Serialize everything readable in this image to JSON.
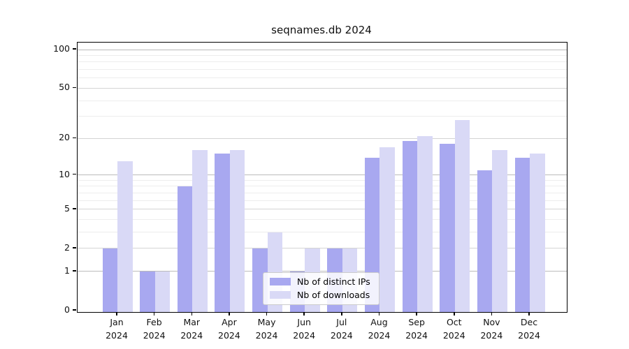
{
  "chart_data": {
    "type": "bar",
    "title": "seqnames.db 2024",
    "categories": [
      "Jan",
      "Feb",
      "Mar",
      "Apr",
      "May",
      "Jun",
      "Jul",
      "Aug",
      "Sep",
      "Oct",
      "Nov",
      "Dec"
    ],
    "year_label": "2024",
    "series": [
      {
        "name": "Nb of distinct IPs",
        "color": "#a8a8f0",
        "values": [
          2,
          1,
          8,
          15,
          2,
          1,
          2,
          14,
          19,
          18,
          11,
          14
        ]
      },
      {
        "name": "Nb of downloads",
        "color": "#d9d9f6",
        "values": [
          13,
          1,
          16,
          16,
          3,
          2,
          2,
          17,
          21,
          28,
          16,
          15
        ]
      }
    ],
    "y_axis": {
      "scale": "log1p",
      "min": 0,
      "max": 100,
      "tick_labels": [
        "0",
        "1",
        "2",
        "5",
        "10",
        "20",
        "50",
        "100"
      ],
      "ticks": [
        0,
        1,
        2,
        5,
        10,
        20,
        50,
        100
      ],
      "minor_gridlines": [
        3,
        4,
        6,
        7,
        8,
        9,
        30,
        40,
        60,
        70,
        80,
        90
      ]
    },
    "grid": true,
    "legend_position": "lower-center",
    "colors": {
      "major_grid_pow10": "#bbbbbb",
      "major_grid": "#d4d4d4",
      "minor_grid": "#ededed",
      "axis": "#000000"
    }
  }
}
